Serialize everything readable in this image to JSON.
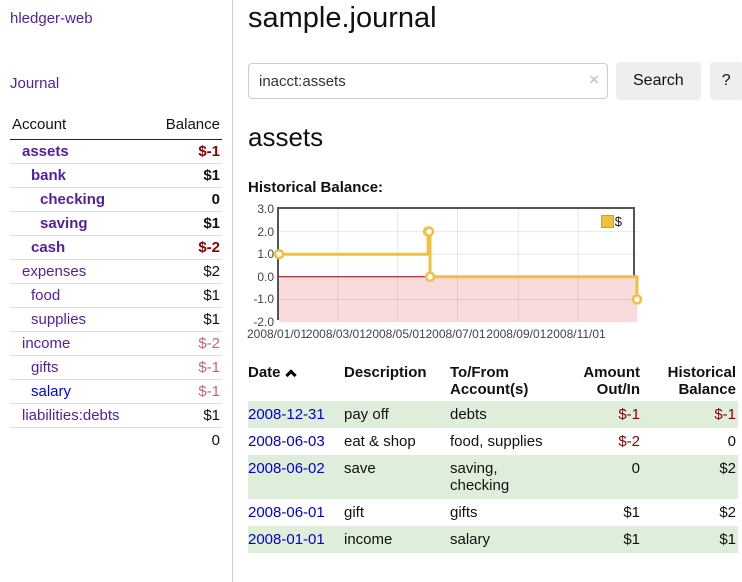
{
  "colors": {
    "purple": "#541f9b",
    "blue": "#0000cc",
    "blue2": "#0000ee",
    "negdark": "#8b0000",
    "neglight": "#bf6b75",
    "stripe": "#dfeeda",
    "gold": "#edc240",
    "pink": "#fadbdb",
    "zeroline": "#8b0000"
  },
  "sidebar": {
    "brand": "hledger-web",
    "nav_journal": "Journal",
    "col_account": "Account",
    "col_balance": "Balance",
    "accounts": [
      {
        "name": "assets",
        "depth": 1,
        "bold": true,
        "balance": "$-1",
        "negative": "dark"
      },
      {
        "name": "bank",
        "depth": 2,
        "bold": true,
        "balance": "$1"
      },
      {
        "name": "checking",
        "depth": 3,
        "bold": true,
        "balance": "0"
      },
      {
        "name": "saving",
        "depth": 3,
        "bold": true,
        "balance": "$1"
      },
      {
        "name": "cash",
        "depth": 2,
        "bold": true,
        "balance": "$-2",
        "negative": "dark"
      },
      {
        "name": "expenses",
        "depth": 1,
        "bold": false,
        "balance": "$2"
      },
      {
        "name": "food",
        "depth": 2,
        "bold": false,
        "balance": "$1"
      },
      {
        "name": "supplies",
        "depth": 2,
        "bold": false,
        "balance": "$1"
      },
      {
        "name": "income",
        "depth": 1,
        "bold": false,
        "balance": "$-2",
        "negative": "light"
      },
      {
        "name": "gifts",
        "depth": 2,
        "bold": false,
        "balance": "$-1",
        "negative": "light"
      },
      {
        "name": "salary",
        "depth": 2,
        "bold": false,
        "balance": "$-1",
        "negative": "light",
        "link_color": "blue"
      },
      {
        "name": "liabilities:debts",
        "depth": 1,
        "bold": false,
        "balance": "$1"
      }
    ],
    "total": "0"
  },
  "header": {
    "title": "sample.journal"
  },
  "search": {
    "query": "inacct:assets",
    "clear_icon": "×",
    "search_label": "Search",
    "help_label": "?"
  },
  "account_page": {
    "heading": "assets",
    "chart_label": "Historical Balance:"
  },
  "chart_data": {
    "type": "line",
    "step": true,
    "title": "Historical Balance:",
    "series": [
      {
        "name": "$",
        "points": [
          [
            "2008-01-01",
            1
          ],
          [
            "2008-06-01",
            2
          ],
          [
            "2008-06-02",
            2
          ],
          [
            "2008-06-03",
            0
          ],
          [
            "2008-12-31",
            -1
          ]
        ]
      }
    ],
    "ylim": [
      -2,
      3
    ],
    "yticks": [
      3.0,
      2.0,
      1.0,
      0.0,
      -1.0,
      -2.0
    ],
    "ytick_labels": [
      "3.0",
      "2.0",
      "1.0",
      "0.0",
      "-1.0",
      "-2.0"
    ],
    "xticks": [
      "2008-01-01",
      "2008-03-01",
      "2008-05-01",
      "2008-07-01",
      "2008-09-01",
      "2008-11-01"
    ],
    "xtick_labels": [
      "2008/01/01",
      "2008/03/01",
      "2008/05/01",
      "2008/07/01",
      "2008/09/01",
      "2008/11/01"
    ],
    "x_range": [
      "2008-01-01",
      "2008-12-31"
    ],
    "grid": true,
    "legend": {
      "label": "$",
      "position": "top-right"
    },
    "negative_region": true
  },
  "register": {
    "columns": [
      {
        "label": "Date",
        "sortable": true
      },
      {
        "label": "Description"
      },
      {
        "label": "To/From\nAccount(s)"
      },
      {
        "label": "Amount\nOut/In",
        "align": "right"
      },
      {
        "label": "Historical\nBalance",
        "align": "right"
      }
    ],
    "rows": [
      {
        "date": "2008-12-31",
        "description": "pay off",
        "accounts": "debts",
        "amount": "$-1",
        "amount_negative": true,
        "balance": "$-1",
        "balance_negative": true
      },
      {
        "date": "2008-06-03",
        "description": "eat & shop",
        "accounts": "food, supplies",
        "amount": "$-2",
        "amount_negative": true,
        "balance": "0",
        "balance_negative": false
      },
      {
        "date": "2008-06-02",
        "description": "save",
        "accounts": "saving,\nchecking",
        "amount": "0",
        "amount_negative": false,
        "balance": "$2",
        "balance_negative": false
      },
      {
        "date": "2008-06-01",
        "description": "gift",
        "accounts": "gifts",
        "amount": "$1",
        "amount_negative": false,
        "balance": "$2",
        "balance_negative": false
      },
      {
        "date": "2008-01-01",
        "description": "income",
        "accounts": "salary",
        "amount": "$1",
        "amount_negative": false,
        "balance": "$1",
        "balance_negative": false
      }
    ]
  }
}
